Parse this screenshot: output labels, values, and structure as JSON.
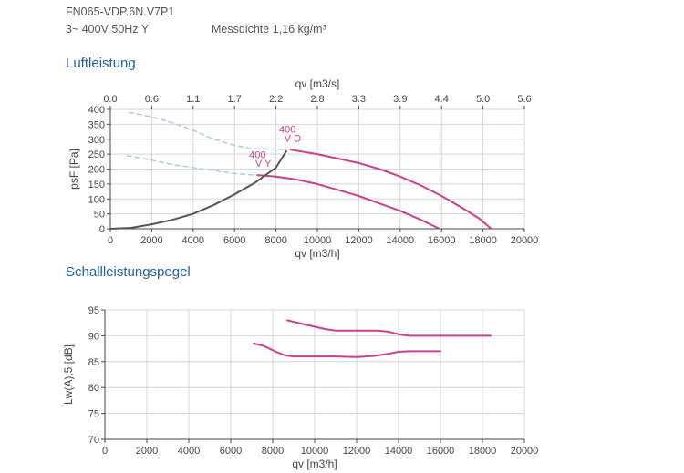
{
  "header": {
    "model": "FN065-VDP.6N.V7P1",
    "voltage": "3~ 400V 50Hz Y",
    "density": "Messdichte 1,16 kg/m³"
  },
  "colors": {
    "pink": "#c9418b",
    "grey": "#555555",
    "dash": "#a9c9e6",
    "grid": "#d5d5d5"
  },
  "chart_data": [
    {
      "type": "line",
      "title": "Luftleistung",
      "xlabel": "qv [m3/h]",
      "ylabel": "psF [Pa]",
      "x2label": "qv [m3/s]",
      "xlim": [
        0,
        20000
      ],
      "ylim": [
        0,
        400
      ],
      "xticks": [
        0,
        2000,
        4000,
        6000,
        8000,
        10000,
        12000,
        14000,
        16000,
        18000,
        20000
      ],
      "yticks": [
        0,
        50,
        100,
        150,
        200,
        250,
        300,
        350,
        400
      ],
      "x2ticks": [
        "0.0",
        "0.6",
        "1.1",
        "1.7",
        "2.2",
        "2.8",
        "3.3",
        "3.9",
        "4.4",
        "5.0",
        "5.6"
      ],
      "grid": true,
      "series": [
        {
          "name": "400 V D",
          "color": "#c9418b",
          "dash": false,
          "points": [
            [
              8700,
              265
            ],
            [
              10000,
              250
            ],
            [
              11000,
              235
            ],
            [
              12000,
              220
            ],
            [
              13000,
              200
            ],
            [
              14000,
              175
            ],
            [
              15000,
              145
            ],
            [
              16000,
              110
            ],
            [
              17000,
              70
            ],
            [
              17800,
              35
            ],
            [
              18400,
              0
            ]
          ]
        },
        {
          "name": "400 V Y",
          "color": "#c9418b",
          "dash": false,
          "points": [
            [
              7100,
              180
            ],
            [
              8000,
              175
            ],
            [
              9000,
              165
            ],
            [
              10000,
              150
            ],
            [
              11000,
              130
            ],
            [
              12000,
              110
            ],
            [
              13000,
              85
            ],
            [
              14000,
              60
            ],
            [
              15000,
              30
            ],
            [
              15900,
              0
            ]
          ]
        },
        {
          "name": "",
          "color": "#555555",
          "dash": false,
          "points": [
            [
              0,
              0
            ],
            [
              1000,
              3
            ],
            [
              2000,
              15
            ],
            [
              3000,
              30
            ],
            [
              4000,
              50
            ],
            [
              5000,
              80
            ],
            [
              6000,
              115
            ],
            [
              7000,
              155
            ],
            [
              8000,
              205
            ],
            [
              8500,
              260
            ]
          ]
        },
        {
          "name": "",
          "color": "#a9c9e6",
          "dash": true,
          "points": [
            [
              900,
              390
            ],
            [
              2000,
              375
            ],
            [
              3000,
              355
            ],
            [
              4000,
              330
            ],
            [
              5000,
              300
            ],
            [
              6000,
              280
            ],
            [
              6800,
              268
            ],
            [
              7600,
              268
            ],
            [
              8400,
              265
            ]
          ]
        },
        {
          "name": "",
          "color": "#a9c9e6",
          "dash": true,
          "points": [
            [
              800,
              245
            ],
            [
              2000,
              230
            ],
            [
              3000,
              215
            ],
            [
              4000,
              205
            ],
            [
              5000,
              195
            ],
            [
              6000,
              185
            ],
            [
              7000,
              180
            ]
          ]
        }
      ],
      "annotations": [
        {
          "text": "400",
          "x": 8150,
          "y": 322
        },
        {
          "text": "V D",
          "x": 8400,
          "y": 292
        },
        {
          "text": "400",
          "x": 6700,
          "y": 237
        },
        {
          "text": "V Y",
          "x": 7000,
          "y": 207
        }
      ]
    },
    {
      "type": "line",
      "title": "Schallleistungspegel",
      "xlabel": "qv [m3/h]",
      "ylabel": "Lw(A),5 [dB]",
      "xlim": [
        0,
        20000
      ],
      "ylim": [
        70,
        95
      ],
      "xticks": [
        0,
        2000,
        4000,
        6000,
        8000,
        10000,
        12000,
        14000,
        16000,
        18000,
        20000
      ],
      "yticks": [
        70,
        75,
        80,
        85,
        90,
        95
      ],
      "grid": true,
      "series": [
        {
          "name": "",
          "color": "#c9418b",
          "dash": false,
          "points": [
            [
              8700,
              93
            ],
            [
              9500,
              92.2
            ],
            [
              10500,
              91.3
            ],
            [
              11000,
              91
            ],
            [
              12000,
              91
            ],
            [
              13000,
              91
            ],
            [
              13500,
              90.8
            ],
            [
              14000,
              90.3
            ],
            [
              14500,
              90
            ],
            [
              16000,
              90
            ],
            [
              18400,
              90
            ]
          ]
        },
        {
          "name": "",
          "color": "#c9418b",
          "dash": false,
          "points": [
            [
              7100,
              88.5
            ],
            [
              7600,
              88
            ],
            [
              8100,
              87
            ],
            [
              8600,
              86.2
            ],
            [
              9000,
              86
            ],
            [
              10000,
              86
            ],
            [
              11000,
              86
            ],
            [
              12000,
              85.9
            ],
            [
              12800,
              86.1
            ],
            [
              13500,
              86.5
            ],
            [
              14000,
              86.9
            ],
            [
              14500,
              87
            ],
            [
              16000,
              87
            ]
          ]
        }
      ]
    }
  ]
}
